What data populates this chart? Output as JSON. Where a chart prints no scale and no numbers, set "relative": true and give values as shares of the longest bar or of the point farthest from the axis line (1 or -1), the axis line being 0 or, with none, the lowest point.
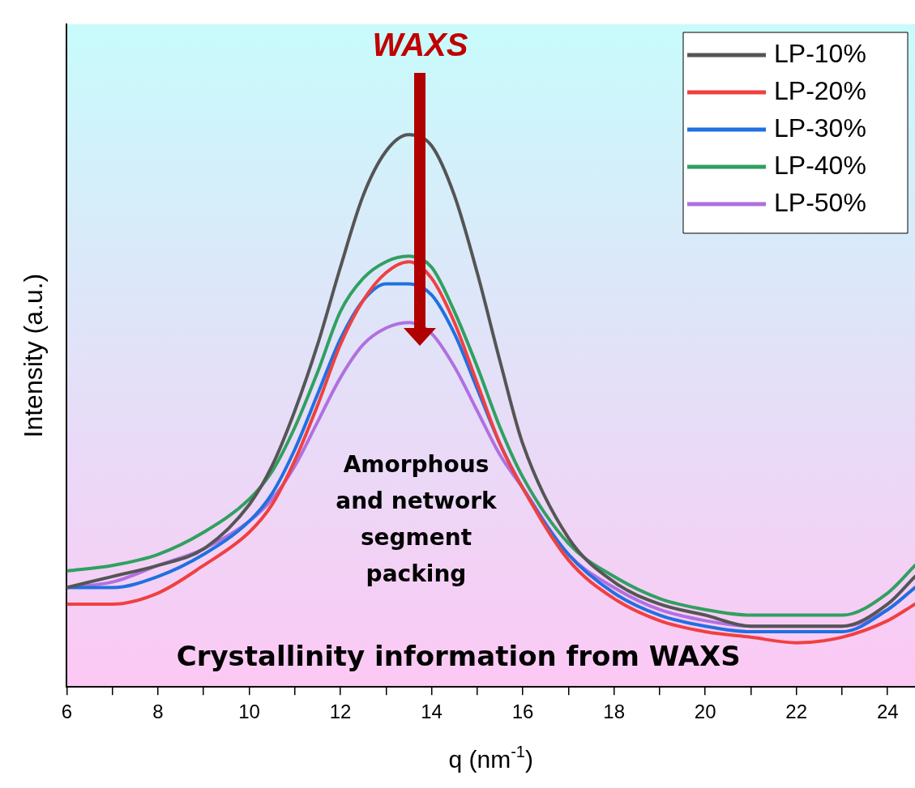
{
  "chart_data": {
    "type": "line",
    "relative": true,
    "xlabel": "q (nm$^{-1}$)",
    "ylabel": "Intensity (a.u.)",
    "x": [
      6,
      7,
      8,
      9,
      10,
      10.5,
      11,
      11.5,
      12,
      12.5,
      13,
      13.5,
      14,
      14.5,
      15,
      15.5,
      16,
      17,
      18,
      19,
      20,
      21,
      22,
      23,
      24,
      24.6
    ],
    "xlim": [
      6,
      24.6
    ],
    "xticks": [
      6,
      {
        "value": 7,
        "label": null
      },
      8,
      {
        "value": 9,
        "label": null
      },
      10,
      {
        "value": 11,
        "label": null
      },
      12,
      {
        "value": 13,
        "label": null
      },
      14,
      {
        "value": 15,
        "label": null
      },
      16,
      {
        "value": 17,
        "label": null
      },
      18,
      {
        "value": 19,
        "label": null
      },
      20,
      {
        "value": 21,
        "label": null
      },
      22,
      {
        "value": 23,
        "label": null
      },
      24
    ],
    "series": [
      {
        "name": "LP-10%",
        "color": "#555555",
        "values": [
          0.18,
          0.2,
          0.22,
          0.25,
          0.33,
          0.4,
          0.5,
          0.62,
          0.76,
          0.89,
          0.97,
          1.0,
          0.98,
          0.89,
          0.75,
          0.59,
          0.44,
          0.27,
          0.19,
          0.15,
          0.13,
          0.11,
          0.11,
          0.11,
          0.15,
          0.2
        ]
      },
      {
        "name": "LP-20%",
        "color": "#f04040",
        "values": [
          0.15,
          0.15,
          0.17,
          0.22,
          0.28,
          0.33,
          0.41,
          0.51,
          0.62,
          0.7,
          0.75,
          0.77,
          0.74,
          0.66,
          0.55,
          0.44,
          0.36,
          0.23,
          0.16,
          0.12,
          0.1,
          0.09,
          0.08,
          0.09,
          0.12,
          0.15
        ]
      },
      {
        "name": "LP-30%",
        "color": "#2070e0",
        "values": [
          0.18,
          0.18,
          0.2,
          0.24,
          0.3,
          0.35,
          0.43,
          0.53,
          0.63,
          0.7,
          0.73,
          0.73,
          0.71,
          0.64,
          0.54,
          0.44,
          0.36,
          0.24,
          0.17,
          0.13,
          0.11,
          0.1,
          0.1,
          0.1,
          0.14,
          0.18
        ]
      },
      {
        "name": "LP-40%",
        "color": "#30a060",
        "values": [
          0.21,
          0.22,
          0.24,
          0.28,
          0.34,
          0.39,
          0.47,
          0.57,
          0.68,
          0.74,
          0.77,
          0.78,
          0.76,
          0.68,
          0.58,
          0.47,
          0.38,
          0.26,
          0.2,
          0.16,
          0.14,
          0.13,
          0.13,
          0.13,
          0.17,
          0.22
        ]
      },
      {
        "name": "LP-50%",
        "color": "#b070e0",
        "values": [
          0.18,
          0.19,
          0.22,
          0.25,
          0.3,
          0.34,
          0.4,
          0.48,
          0.56,
          0.62,
          0.65,
          0.66,
          0.64,
          0.58,
          0.5,
          0.42,
          0.36,
          0.24,
          0.18,
          0.14,
          0.12,
          0.11,
          0.11,
          0.11,
          0.14,
          0.18
        ]
      }
    ],
    "legend": "top right",
    "grid": false,
    "marker": "none",
    "line_style": "solid",
    "annotations": [
      "WAXS",
      "Amorphous and network segment packing",
      "Crystallinity information from WAXS"
    ]
  }
}
